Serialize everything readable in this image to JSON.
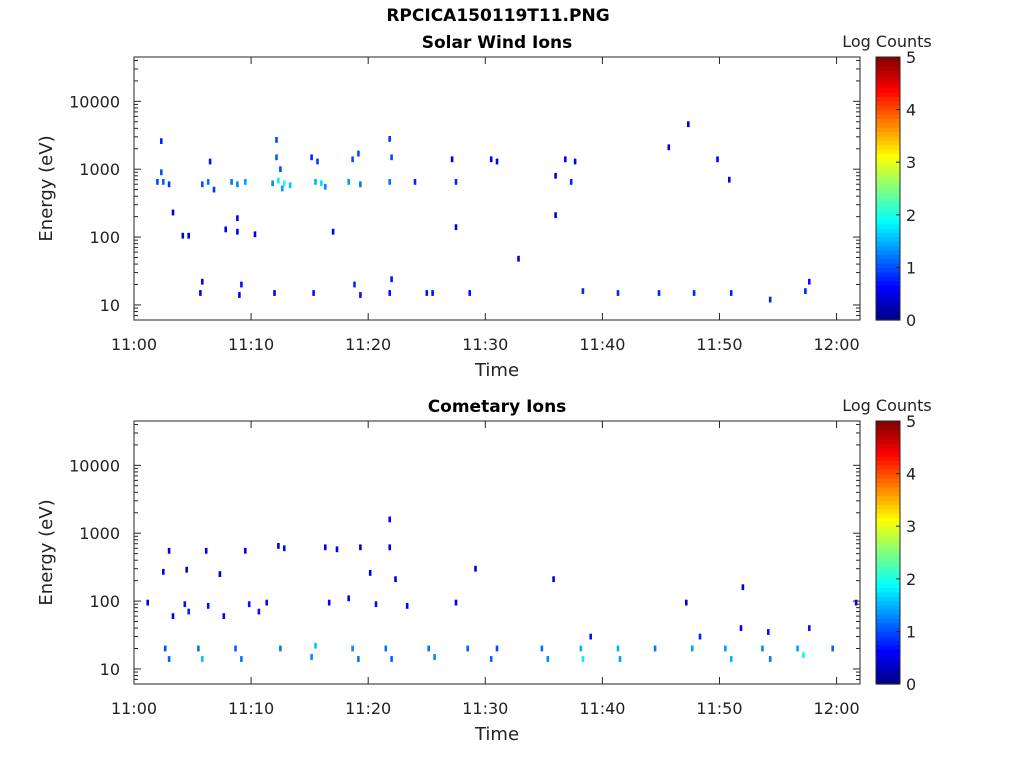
{
  "figure_title": "RPCICA150119T11.PNG",
  "colors": {
    "colormap": [
      "#00007f",
      "#0000ff",
      "#007fff",
      "#00ffff",
      "#7fff7f",
      "#ffff00",
      "#ff7f00",
      "#ff0000",
      "#7f0000"
    ]
  },
  "chart_data": [
    {
      "type": "heatmap",
      "title": "Solar Wind Ions",
      "xlabel": "Time",
      "ylabel": "Energy (eV)",
      "colorbar_label": "Log Counts",
      "yscale": "log",
      "xlim": [
        "11:00",
        "12:02"
      ],
      "ylim": [
        6,
        45000
      ],
      "clim": [
        0,
        5
      ],
      "x_ticks": [
        "11:00",
        "11:10",
        "11:20",
        "11:30",
        "11:40",
        "11:50",
        "12:00"
      ],
      "y_ticks": [
        "10",
        "100",
        "1000",
        "10000"
      ],
      "colorbar_ticks": [
        "0",
        "1",
        "2",
        "3",
        "4",
        "5"
      ],
      "grid": false,
      "cells": [
        {
          "t": "11:02:20",
          "e": 2600,
          "c": 0.8
        },
        {
          "t": "11:02:20",
          "e": 900,
          "c": 1.0
        },
        {
          "t": "11:02:00",
          "e": 650,
          "c": 1.0
        },
        {
          "t": "11:02:30",
          "e": 650,
          "c": 1.1
        },
        {
          "t": "11:03:00",
          "e": 600,
          "c": 0.9
        },
        {
          "t": "11:03:20",
          "e": 230,
          "c": 0.5
        },
        {
          "t": "11:04:10",
          "e": 105,
          "c": 0.4
        },
        {
          "t": "11:04:40",
          "e": 105,
          "c": 0.4
        },
        {
          "t": "11:05:50",
          "e": 22,
          "c": 0.6
        },
        {
          "t": "11:05:40",
          "e": 15,
          "c": 0.6
        },
        {
          "t": "11:05:50",
          "e": 600,
          "c": 1.0
        },
        {
          "t": "11:06:20",
          "e": 650,
          "c": 1.2
        },
        {
          "t": "11:06:30",
          "e": 1300,
          "c": 0.7
        },
        {
          "t": "11:06:50",
          "e": 500,
          "c": 0.9
        },
        {
          "t": "11:07:50",
          "e": 130,
          "c": 0.5
        },
        {
          "t": "11:08:20",
          "e": 650,
          "c": 1.2
        },
        {
          "t": "11:08:50",
          "e": 600,
          "c": 1.3
        },
        {
          "t": "11:08:50",
          "e": 190,
          "c": 0.5
        },
        {
          "t": "11:08:50",
          "e": 120,
          "c": 0.5
        },
        {
          "t": "11:09:30",
          "e": 650,
          "c": 1.4
        },
        {
          "t": "11:09:10",
          "e": 20,
          "c": 0.7
        },
        {
          "t": "11:09:00",
          "e": 14,
          "c": 0.6
        },
        {
          "t": "11:10:20",
          "e": 110,
          "c": 0.5
        },
        {
          "t": "11:12:10",
          "e": 2700,
          "c": 1.0
        },
        {
          "t": "11:12:10",
          "e": 1500,
          "c": 1.1
        },
        {
          "t": "11:12:30",
          "e": 1000,
          "c": 1.0
        },
        {
          "t": "11:11:50",
          "e": 620,
          "c": 1.3
        },
        {
          "t": "11:12:20",
          "e": 680,
          "c": 1.8
        },
        {
          "t": "11:12:50",
          "e": 620,
          "c": 2.0
        },
        {
          "t": "11:13:20",
          "e": 580,
          "c": 1.6
        },
        {
          "t": "11:12:40",
          "e": 520,
          "c": 1.4
        },
        {
          "t": "11:12:00",
          "e": 15,
          "c": 0.6
        },
        {
          "t": "11:15:10",
          "e": 1500,
          "c": 0.8
        },
        {
          "t": "11:15:40",
          "e": 1300,
          "c": 0.9
        },
        {
          "t": "11:15:30",
          "e": 650,
          "c": 1.5
        },
        {
          "t": "11:16:00",
          "e": 620,
          "c": 1.7
        },
        {
          "t": "11:16:20",
          "e": 550,
          "c": 1.3
        },
        {
          "t": "11:15:20",
          "e": 15,
          "c": 0.7
        },
        {
          "t": "11:17:00",
          "e": 120,
          "c": 0.5
        },
        {
          "t": "11:18:20",
          "e": 650,
          "c": 1.4
        },
        {
          "t": "11:18:40",
          "e": 1400,
          "c": 1.0
        },
        {
          "t": "11:19:10",
          "e": 1700,
          "c": 1.0
        },
        {
          "t": "11:19:20",
          "e": 600,
          "c": 1.2
        },
        {
          "t": "11:18:50",
          "e": 20,
          "c": 0.8
        },
        {
          "t": "11:19:20",
          "e": 14,
          "c": 0.7
        },
        {
          "t": "11:21:50",
          "e": 2800,
          "c": 0.9
        },
        {
          "t": "11:22:00",
          "e": 1500,
          "c": 1.0
        },
        {
          "t": "11:21:50",
          "e": 650,
          "c": 1.2
        },
        {
          "t": "11:22:00",
          "e": 24,
          "c": 0.7
        },
        {
          "t": "11:21:50",
          "e": 15,
          "c": 0.7
        },
        {
          "t": "11:24:00",
          "e": 650,
          "c": 0.8
        },
        {
          "t": "11:25:00",
          "e": 15,
          "c": 0.7
        },
        {
          "t": "11:25:30",
          "e": 15,
          "c": 0.7
        },
        {
          "t": "11:27:10",
          "e": 1400,
          "c": 0.5
        },
        {
          "t": "11:27:30",
          "e": 650,
          "c": 0.8
        },
        {
          "t": "11:27:30",
          "e": 140,
          "c": 0.5
        },
        {
          "t": "11:28:40",
          "e": 15,
          "c": 0.7
        },
        {
          "t": "11:30:30",
          "e": 1400,
          "c": 0.6
        },
        {
          "t": "11:31:00",
          "e": 1300,
          "c": 0.5
        },
        {
          "t": "11:32:50",
          "e": 48,
          "c": 0.5
        },
        {
          "t": "11:36:00",
          "e": 800,
          "c": 0.5
        },
        {
          "t": "11:36:00",
          "e": 210,
          "c": 0.5
        },
        {
          "t": "11:36:50",
          "e": 1400,
          "c": 0.6
        },
        {
          "t": "11:37:20",
          "e": 650,
          "c": 0.8
        },
        {
          "t": "11:37:40",
          "e": 1300,
          "c": 0.6
        },
        {
          "t": "11:38:20",
          "e": 16,
          "c": 0.8
        },
        {
          "t": "11:41:20",
          "e": 15,
          "c": 0.8
        },
        {
          "t": "11:44:50",
          "e": 15,
          "c": 0.8
        },
        {
          "t": "11:45:40",
          "e": 2100,
          "c": 0.5
        },
        {
          "t": "11:47:20",
          "e": 4600,
          "c": 0.5
        },
        {
          "t": "11:47:50",
          "e": 15,
          "c": 0.8
        },
        {
          "t": "11:49:50",
          "e": 1400,
          "c": 0.6
        },
        {
          "t": "11:50:50",
          "e": 700,
          "c": 0.5
        },
        {
          "t": "11:51:00",
          "e": 15,
          "c": 0.8
        },
        {
          "t": "11:54:20",
          "e": 12,
          "c": 0.8
        },
        {
          "t": "11:57:20",
          "e": 16,
          "c": 0.8
        },
        {
          "t": "11:57:40",
          "e": 22,
          "c": 0.7
        }
      ]
    },
    {
      "type": "heatmap",
      "title": "Cometary Ions",
      "xlabel": "Time",
      "ylabel": "Energy (eV)",
      "colorbar_label": "Log Counts",
      "yscale": "log",
      "xlim": [
        "11:00",
        "12:02"
      ],
      "ylim": [
        6,
        45000
      ],
      "clim": [
        0,
        5
      ],
      "x_ticks": [
        "11:00",
        "11:10",
        "11:20",
        "11:30",
        "11:40",
        "11:50",
        "12:00"
      ],
      "y_ticks": [
        "10",
        "100",
        "1000",
        "10000"
      ],
      "colorbar_ticks": [
        "0",
        "1",
        "2",
        "3",
        "4",
        "5"
      ],
      "grid": false,
      "cells": [
        {
          "t": "11:01:10",
          "e": 95,
          "c": 0.5
        },
        {
          "t": "11:02:30",
          "e": 270,
          "c": 0.5
        },
        {
          "t": "11:03:00",
          "e": 550,
          "c": 0.5
        },
        {
          "t": "11:03:20",
          "e": 60,
          "c": 0.6
        },
        {
          "t": "11:04:20",
          "e": 90,
          "c": 0.7
        },
        {
          "t": "11:04:30",
          "e": 290,
          "c": 0.5
        },
        {
          "t": "11:04:40",
          "e": 70,
          "c": 0.8
        },
        {
          "t": "11:02:40",
          "e": 20,
          "c": 1.0
        },
        {
          "t": "11:03:00",
          "e": 14,
          "c": 1.1
        },
        {
          "t": "11:05:30",
          "e": 20,
          "c": 1.2
        },
        {
          "t": "11:05:50",
          "e": 14,
          "c": 1.6
        },
        {
          "t": "11:06:10",
          "e": 550,
          "c": 0.6
        },
        {
          "t": "11:06:20",
          "e": 85,
          "c": 0.7
        },
        {
          "t": "11:07:20",
          "e": 250,
          "c": 0.5
        },
        {
          "t": "11:07:40",
          "e": 60,
          "c": 0.6
        },
        {
          "t": "11:08:40",
          "e": 20,
          "c": 1.1
        },
        {
          "t": "11:09:10",
          "e": 14,
          "c": 1.2
        },
        {
          "t": "11:09:30",
          "e": 550,
          "c": 0.6
        },
        {
          "t": "11:09:50",
          "e": 90,
          "c": 0.7
        },
        {
          "t": "11:10:40",
          "e": 70,
          "c": 0.7
        },
        {
          "t": "11:11:20",
          "e": 95,
          "c": 0.7
        },
        {
          "t": "11:12:20",
          "e": 650,
          "c": 0.6
        },
        {
          "t": "11:12:50",
          "e": 600,
          "c": 0.7
        },
        {
          "t": "11:12:30",
          "e": 20,
          "c": 1.2
        },
        {
          "t": "11:15:30",
          "e": 22,
          "c": 1.6
        },
        {
          "t": "11:15:10",
          "e": 15,
          "c": 1.3
        },
        {
          "t": "11:16:20",
          "e": 620,
          "c": 0.6
        },
        {
          "t": "11:16:40",
          "e": 95,
          "c": 0.6
        },
        {
          "t": "11:17:20",
          "e": 580,
          "c": 0.5
        },
        {
          "t": "11:18:20",
          "e": 110,
          "c": 0.6
        },
        {
          "t": "11:18:40",
          "e": 20,
          "c": 1.3
        },
        {
          "t": "11:19:10",
          "e": 14,
          "c": 1.2
        },
        {
          "t": "11:19:20",
          "e": 620,
          "c": 0.5
        },
        {
          "t": "11:20:10",
          "e": 260,
          "c": 0.6
        },
        {
          "t": "11:20:40",
          "e": 90,
          "c": 0.7
        },
        {
          "t": "11:21:50",
          "e": 1600,
          "c": 0.6
        },
        {
          "t": "11:21:50",
          "e": 620,
          "c": 0.5
        },
        {
          "t": "11:22:20",
          "e": 210,
          "c": 0.5
        },
        {
          "t": "11:21:30",
          "e": 20,
          "c": 1.2
        },
        {
          "t": "11:22:00",
          "e": 14,
          "c": 1.1
        },
        {
          "t": "11:23:20",
          "e": 85,
          "c": 0.6
        },
        {
          "t": "11:25:10",
          "e": 20,
          "c": 1.2
        },
        {
          "t": "11:25:40",
          "e": 15,
          "c": 1.3
        },
        {
          "t": "11:27:30",
          "e": 95,
          "c": 0.6
        },
        {
          "t": "11:28:30",
          "e": 20,
          "c": 1.1
        },
        {
          "t": "11:29:10",
          "e": 300,
          "c": 0.5
        },
        {
          "t": "11:30:30",
          "e": 14,
          "c": 1.1
        },
        {
          "t": "11:31:00",
          "e": 20,
          "c": 1.0
        },
        {
          "t": "11:34:50",
          "e": 20,
          "c": 1.2
        },
        {
          "t": "11:35:50",
          "e": 210,
          "c": 0.5
        },
        {
          "t": "11:35:20",
          "e": 14,
          "c": 1.3
        },
        {
          "t": "11:38:10",
          "e": 20,
          "c": 1.5
        },
        {
          "t": "11:38:20",
          "e": 14,
          "c": 1.8
        },
        {
          "t": "11:39:00",
          "e": 30,
          "c": 0.7
        },
        {
          "t": "11:41:20",
          "e": 20,
          "c": 1.5
        },
        {
          "t": "11:41:30",
          "e": 14,
          "c": 1.4
        },
        {
          "t": "11:44:30",
          "e": 20,
          "c": 1.2
        },
        {
          "t": "11:47:10",
          "e": 95,
          "c": 0.5
        },
        {
          "t": "11:47:40",
          "e": 20,
          "c": 1.4
        },
        {
          "t": "11:48:20",
          "e": 30,
          "c": 0.8
        },
        {
          "t": "11:50:30",
          "e": 20,
          "c": 1.4
        },
        {
          "t": "11:51:00",
          "e": 14,
          "c": 1.5
        },
        {
          "t": "11:52:00",
          "e": 160,
          "c": 0.5
        },
        {
          "t": "11:51:50",
          "e": 40,
          "c": 0.6
        },
        {
          "t": "11:53:40",
          "e": 20,
          "c": 1.3
        },
        {
          "t": "11:54:20",
          "e": 14,
          "c": 1.2
        },
        {
          "t": "11:54:10",
          "e": 35,
          "c": 0.7
        },
        {
          "t": "11:56:40",
          "e": 20,
          "c": 1.4
        },
        {
          "t": "11:57:10",
          "e": 16,
          "c": 1.9
        },
        {
          "t": "11:57:40",
          "e": 40,
          "c": 0.7
        },
        {
          "t": "11:59:40",
          "e": 20,
          "c": 1.1
        },
        {
          "t": "12:01:40",
          "e": 95,
          "c": 0.6
        }
      ]
    }
  ]
}
